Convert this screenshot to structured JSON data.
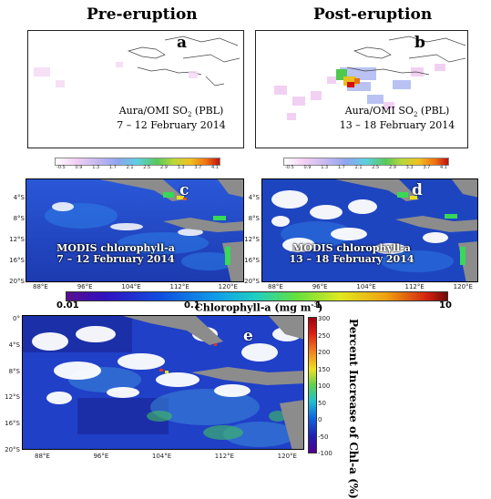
{
  "headers": {
    "pre": "Pre-eruption",
    "post": "Post-eruption"
  },
  "panel_a": {
    "letter": "a",
    "caption_line1": "Aura/OMI SO",
    "caption_sub": "2",
    "caption_tail": " (PBL)",
    "caption_line2": "7 – 12 February 2014"
  },
  "panel_b": {
    "letter": "b",
    "caption_line1": "Aura/OMI SO",
    "caption_sub": "2",
    "caption_tail": " (PBL)",
    "caption_line2": "13 – 18 February 2014"
  },
  "so2_colorbar": {
    "ticks": [
      "-0.5",
      "0.9",
      "1.3",
      "1.7",
      "2.1",
      "2.5",
      "2.9",
      "3.3",
      "3.7",
      "4.1"
    ]
  },
  "panel_c": {
    "letter": "c",
    "caption_line1": "MODIS chlorophyll-a",
    "caption_line2": "7 – 12 February 2014"
  },
  "panel_d": {
    "letter": "d",
    "caption_line1": "MODIS chlorophyll-a",
    "caption_line2": "13 – 18 February 2014"
  },
  "chl_lat_ticks": [
    "4°S",
    "8°S",
    "12°S",
    "16°S",
    "20°S"
  ],
  "chl_lon_ticks": [
    "88°E",
    "96°E",
    "104°E",
    "112°E",
    "120°E"
  ],
  "chl_colorbar": {
    "ticks": [
      "0.01",
      "0.1",
      "1",
      "10"
    ],
    "label": "Chlorophyll-a (mg m",
    "label_sup": "-3",
    "label_tail": ")"
  },
  "panel_e": {
    "letter": "e",
    "lat_ticks": [
      "0°",
      "4°S",
      "8°S",
      "12°S",
      "16°S",
      "20°S"
    ],
    "lon_ticks": [
      "88°E",
      "96°E",
      "104°E",
      "112°E",
      "120°E"
    ],
    "colorbar_ticks": [
      "300",
      "250",
      "200",
      "150",
      "100",
      "50",
      "0",
      "-50",
      "-100"
    ],
    "side_label": "Percent Increase of Chl-a (%)"
  },
  "colors": {
    "land": "#8c8c8c",
    "ocean_low": "#1a3fb5",
    "cloud": "#ffffff",
    "so2_hot": "#d01010"
  }
}
